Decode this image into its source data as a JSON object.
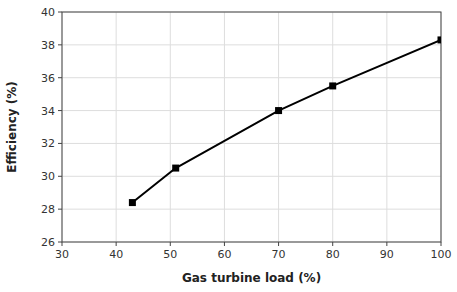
{
  "chart_data": {
    "type": "line",
    "x": [
      43,
      51,
      70,
      80,
      100
    ],
    "values": [
      28.4,
      30.5,
      34.0,
      35.5,
      38.3
    ],
    "color": "#000000",
    "marker": "square",
    "xlabel": "Gas turbine load (%)",
    "ylabel": "Efficiency (%)",
    "xlim": [
      30,
      100
    ],
    "ylim": [
      26,
      40
    ],
    "xticks": [
      30,
      40,
      50,
      60,
      70,
      80,
      90,
      100
    ],
    "yticks": [
      26,
      28,
      30,
      32,
      34,
      36,
      38,
      40
    ],
    "grid": true
  }
}
